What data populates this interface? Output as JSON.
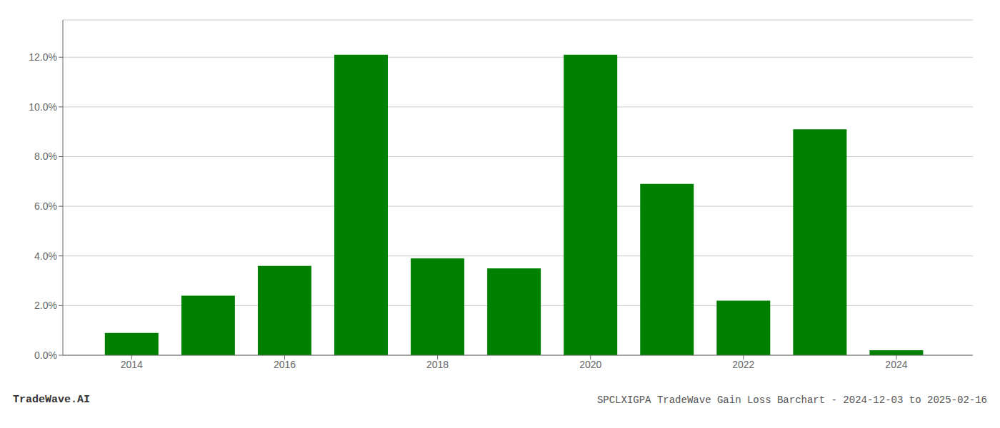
{
  "chart_data": {
    "type": "bar",
    "x": [
      2014,
      2015,
      2016,
      2017,
      2018,
      2019,
      2020,
      2021,
      2022,
      2023,
      2024
    ],
    "values": [
      0.009,
      0.024,
      0.036,
      0.121,
      0.039,
      0.035,
      0.121,
      0.069,
      0.022,
      0.091,
      0.002
    ],
    "color": "#008000",
    "xlim": [
      2013.1,
      2025.0
    ],
    "xticks": [
      2014,
      2016,
      2018,
      2020,
      2022,
      2024
    ],
    "ylim": [
      0,
      0.135
    ],
    "yticks": [
      {
        "value": 0.0,
        "label": "0.0%"
      },
      {
        "value": 0.02,
        "label": "2.0%"
      },
      {
        "value": 0.04,
        "label": "4.0%"
      },
      {
        "value": 0.06,
        "label": "6.0%"
      },
      {
        "value": 0.08,
        "label": "8.0%"
      },
      {
        "value": 0.1,
        "label": "10.0%"
      },
      {
        "value": 0.12,
        "label": "12.0%"
      }
    ],
    "grid": true,
    "annotations": [
      "TradeWave.AI",
      "SPCLXIGPA TradeWave Gain Loss Barchart - 2024-12-03 to 2025-02-16"
    ]
  }
}
